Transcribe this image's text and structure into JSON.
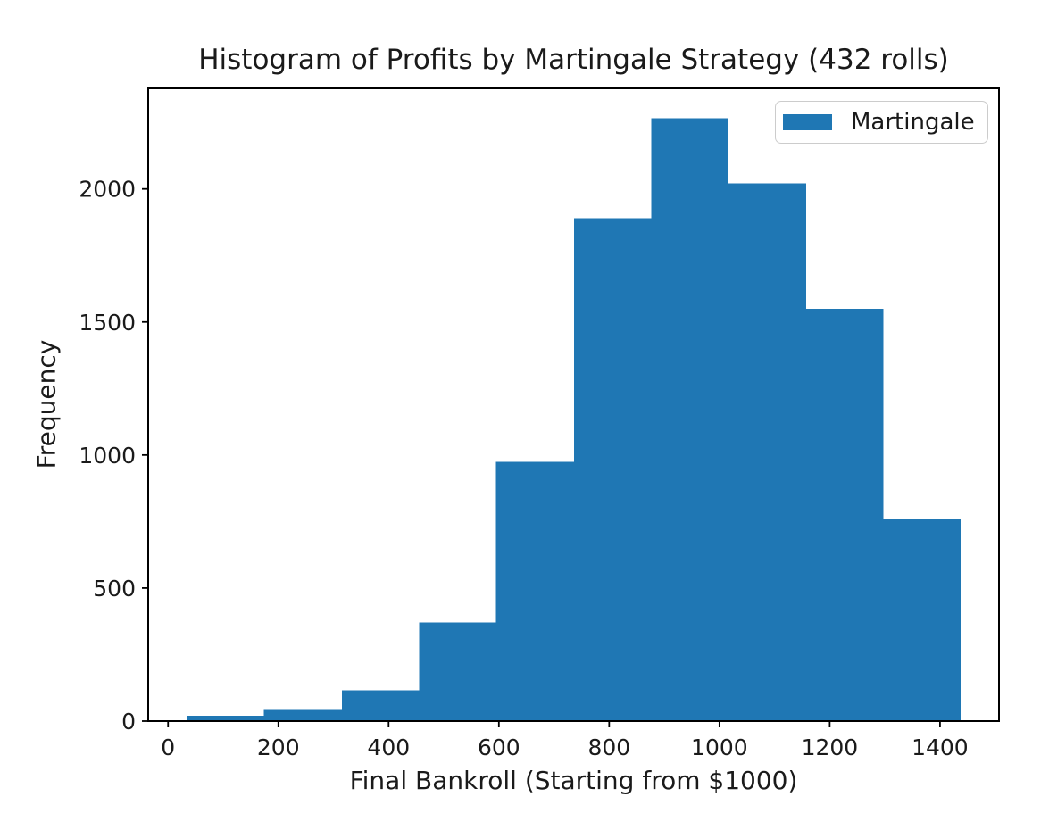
{
  "chart_data": {
    "type": "bar",
    "subtype": "histogram",
    "title": "Histogram of Profits by Martingale Strategy (432 rolls)",
    "xlabel": "Final Bankroll (Starting from $1000)",
    "ylabel": "Frequency",
    "legend": {
      "label": "Martingale",
      "position": "upper right"
    },
    "bar_color": "#1f77b4",
    "axis_color": "#000000",
    "bin_edges": [
      34,
      174,
      315,
      455,
      595,
      736,
      876,
      1016,
      1157,
      1297,
      1437
    ],
    "counts": [
      20,
      45,
      115,
      370,
      975,
      1890,
      2265,
      2020,
      1550,
      760
    ],
    "xticks": [
      0,
      200,
      400,
      600,
      800,
      1000,
      1200,
      1400
    ],
    "yticks": [
      0,
      500,
      1000,
      1500,
      2000
    ],
    "xlim": [
      -36,
      1507
    ],
    "ylim": [
      0,
      2378
    ],
    "grid": false
  }
}
